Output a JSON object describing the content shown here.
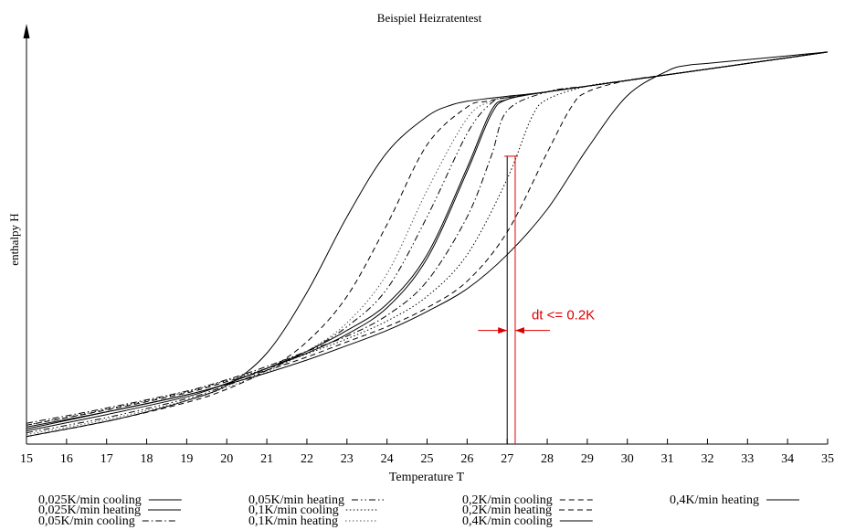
{
  "chart_data": {
    "type": "line",
    "title": "Beispiel Heizratentest",
    "xlabel": "Temperature T",
    "ylabel": "enthalpy H",
    "xlim": [
      15,
      35
    ],
    "ylim": [
      0,
      1.1
    ],
    "x_ticks": [
      "15",
      "16",
      "17",
      "18",
      "19",
      "20",
      "21",
      "22",
      "23",
      "24",
      "25",
      "26",
      "27",
      "28",
      "29",
      "30",
      "31",
      "32",
      "33",
      "34",
      "35"
    ],
    "grid": false,
    "legend_position": "bottom",
    "series": [
      {
        "name": "0,025K/min cooling",
        "line_style": "solid",
        "color": "#000000",
        "x": [
          15,
          17,
          19,
          20,
          21,
          22,
          23,
          24,
          25,
          26,
          26.6,
          27,
          28,
          29,
          30,
          31,
          32,
          33,
          34,
          35
        ],
        "y": [
          0.045,
          0.085,
          0.13,
          0.16,
          0.2,
          0.24,
          0.29,
          0.36,
          0.49,
          0.72,
          0.87,
          0.91,
          0.93,
          0.945,
          0.96,
          0.975,
          0.99,
          1.005,
          1.02,
          1.035
        ]
      },
      {
        "name": "0,025K/min heating",
        "line_style": "solid",
        "color": "#000000",
        "x": [
          15,
          17,
          19,
          20,
          21,
          22,
          23,
          24,
          25,
          26,
          26.6,
          27,
          28,
          29,
          30,
          31,
          32,
          33,
          34,
          35
        ],
        "y": [
          0.035,
          0.078,
          0.125,
          0.16,
          0.2,
          0.245,
          0.3,
          0.37,
          0.5,
          0.73,
          0.88,
          0.91,
          0.93,
          0.945,
          0.96,
          0.975,
          0.99,
          1.005,
          1.02,
          1.035
        ]
      },
      {
        "name": "0,05K/min cooling",
        "line_style": "dash-dot",
        "color": "#000000",
        "x": [
          15,
          17,
          19,
          20,
          21,
          22,
          23,
          24,
          25,
          26,
          26.6,
          27,
          28,
          29,
          30,
          31,
          32,
          33,
          34,
          35
        ],
        "y": [
          0.055,
          0.095,
          0.14,
          0.17,
          0.205,
          0.245,
          0.285,
          0.34,
          0.43,
          0.6,
          0.76,
          0.88,
          0.93,
          0.945,
          0.96,
          0.975,
          0.99,
          1.005,
          1.02,
          1.035
        ]
      },
      {
        "name": "0,05K/min heating",
        "line_style": "dash-dot-dot",
        "color": "#000000",
        "x": [
          15,
          17,
          19,
          20,
          21,
          22,
          23,
          24,
          25,
          26,
          26.6,
          27,
          28,
          29,
          30,
          31,
          32,
          33,
          34,
          35
        ],
        "y": [
          0.03,
          0.07,
          0.12,
          0.155,
          0.195,
          0.245,
          0.31,
          0.41,
          0.6,
          0.82,
          0.9,
          0.915,
          0.93,
          0.945,
          0.96,
          0.975,
          0.99,
          1.005,
          1.02,
          1.035
        ]
      },
      {
        "name": "0,1K/min cooling",
        "line_style": "dotted",
        "color": "#000000",
        "x": [
          15,
          17,
          19,
          20,
          21,
          22,
          23,
          24,
          25,
          26,
          27,
          27.6,
          28,
          29,
          30,
          31,
          32,
          33,
          34,
          35
        ],
        "y": [
          0.05,
          0.092,
          0.138,
          0.168,
          0.2,
          0.238,
          0.278,
          0.325,
          0.39,
          0.5,
          0.7,
          0.86,
          0.91,
          0.945,
          0.96,
          0.975,
          0.99,
          1.005,
          1.02,
          1.035
        ]
      },
      {
        "name": "0,1K/min heating",
        "line_style": "dotted",
        "color": "#555555",
        "x": [
          15,
          17,
          19,
          20,
          21,
          22,
          23,
          24,
          25,
          26,
          26.6,
          27,
          28,
          29,
          30,
          31,
          32,
          33,
          34,
          35
        ],
        "y": [
          0.025,
          0.065,
          0.115,
          0.15,
          0.19,
          0.245,
          0.32,
          0.45,
          0.67,
          0.86,
          0.905,
          0.915,
          0.93,
          0.945,
          0.96,
          0.975,
          0.99,
          1.005,
          1.02,
          1.035
        ]
      },
      {
        "name": "0,2K/min cooling",
        "line_style": "dashed",
        "color": "#000000",
        "x": [
          15,
          17,
          19,
          20,
          21,
          22,
          23,
          24,
          25,
          26,
          27,
          28,
          28.6,
          29,
          30,
          31,
          32,
          33,
          34,
          35
        ],
        "y": [
          0.05,
          0.09,
          0.135,
          0.165,
          0.195,
          0.23,
          0.27,
          0.31,
          0.36,
          0.43,
          0.56,
          0.77,
          0.89,
          0.93,
          0.96,
          0.975,
          0.99,
          1.005,
          1.02,
          1.035
        ]
      },
      {
        "name": "0,2K/min heating",
        "line_style": "dashed",
        "color": "#000000",
        "x": [
          15,
          17,
          19,
          20,
          21,
          22,
          23,
          24,
          25,
          26,
          26.5,
          27,
          28,
          29,
          30,
          31,
          32,
          33,
          34,
          35
        ],
        "y": [
          0.02,
          0.06,
          0.11,
          0.145,
          0.195,
          0.27,
          0.39,
          0.58,
          0.79,
          0.89,
          0.905,
          0.915,
          0.93,
          0.945,
          0.96,
          0.975,
          0.99,
          1.005,
          1.02,
          1.035
        ]
      },
      {
        "name": "0,4K/min cooling",
        "line_style": "solid",
        "color": "#000000",
        "x": [
          15,
          17,
          19,
          20,
          21,
          22,
          23,
          24,
          25,
          26,
          27,
          28,
          29,
          30,
          31,
          31.5,
          32,
          33,
          34,
          35
        ],
        "y": [
          0.04,
          0.085,
          0.13,
          0.158,
          0.188,
          0.222,
          0.26,
          0.3,
          0.35,
          0.41,
          0.5,
          0.62,
          0.78,
          0.92,
          0.985,
          1.0,
          1.005,
          1.015,
          1.025,
          1.035
        ]
      },
      {
        "name": "0,4K/min heating",
        "line_style": "solid",
        "color": "#000000",
        "x": [
          15,
          17,
          18,
          19,
          20,
          21,
          22,
          23,
          24,
          25,
          25.6,
          26,
          26.5,
          27,
          28,
          30,
          32,
          33,
          34,
          35
        ],
        "y": [
          0.02,
          0.06,
          0.085,
          0.115,
          0.155,
          0.24,
          0.4,
          0.6,
          0.77,
          0.865,
          0.895,
          0.905,
          0.912,
          0.918,
          0.93,
          0.96,
          0.99,
          1.005,
          1.02,
          1.035
        ]
      }
    ],
    "annotation": {
      "text": "dt <= 0.2K",
      "color": "#dd0000",
      "bracket_x": [
        27.0,
        27.2
      ],
      "top_y": 0.76,
      "arrow_y": 0.3
    }
  }
}
